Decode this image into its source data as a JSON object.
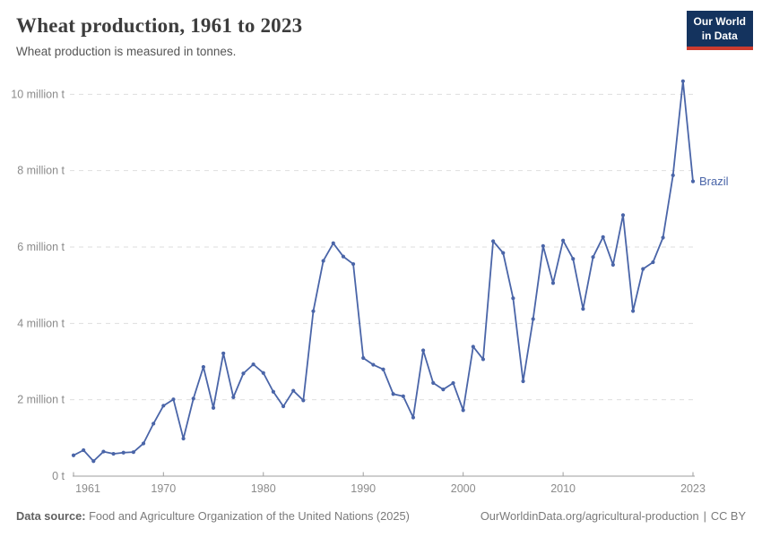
{
  "header": {
    "title": "Wheat production, 1961 to 2023",
    "subtitle": "Wheat production is measured in tonnes.",
    "logo": {
      "line1": "Our World",
      "line2": "in Data"
    }
  },
  "colors": {
    "logo_background": "#14335e",
    "logo_underline": "#cc3b2f",
    "series_blue": "#4a65a8",
    "gridline": "#dedede",
    "axis_line": "#9e9e9e",
    "tick_label": "#8b8b8b"
  },
  "chart_data": {
    "type": "line",
    "title": "Wheat production, 1961 to 2023",
    "unit": "tonnes",
    "entity": "Brazil",
    "grid": "dashed-horizontal",
    "legend_position": "line-end-label",
    "ylim": [
      0,
      10500000
    ],
    "x": [
      1961,
      1962,
      1963,
      1964,
      1965,
      1966,
      1967,
      1968,
      1969,
      1970,
      1971,
      1972,
      1973,
      1974,
      1975,
      1976,
      1977,
      1978,
      1979,
      1980,
      1981,
      1982,
      1983,
      1984,
      1985,
      1986,
      1987,
      1988,
      1989,
      1990,
      1991,
      1992,
      1993,
      1994,
      1995,
      1996,
      1997,
      1998,
      1999,
      2000,
      2001,
      2002,
      2003,
      2004,
      2005,
      2006,
      2007,
      2008,
      2009,
      2010,
      2011,
      2012,
      2013,
      2014,
      2015,
      2016,
      2017,
      2018,
      2019,
      2020,
      2021,
      2022,
      2023
    ],
    "series": [
      {
        "name": "Brazil",
        "color": "#4a65a8",
        "values": [
          545000,
          680000,
          392000,
          643000,
          585000,
          615000,
          629000,
          856000,
          1374000,
          1844000,
          2011000,
          983000,
          2031000,
          2859000,
          1788000,
          3216000,
          2066000,
          2690000,
          2927000,
          2702000,
          2209000,
          1827000,
          2237000,
          1983000,
          4320000,
          5638000,
          6099000,
          5751000,
          5554000,
          3093000,
          2917000,
          2796000,
          2150000,
          2091000,
          1534000,
          3293000,
          2441000,
          2270000,
          2438000,
          1725000,
          3390000,
          3060000,
          6153000,
          5845000,
          4659000,
          2485000,
          4114000,
          6027000,
          5056000,
          6171000,
          5690000,
          4380000,
          5738000,
          6262000,
          5535000,
          6835000,
          4324000,
          5427000,
          5602000,
          6246000,
          7879000,
          10344000,
          7720000
        ]
      }
    ],
    "y_ticks": [
      {
        "value": 0,
        "label": "0 t"
      },
      {
        "value": 2000000,
        "label": "2 million t"
      },
      {
        "value": 4000000,
        "label": "4 million t"
      },
      {
        "value": 6000000,
        "label": "6 million t"
      },
      {
        "value": 8000000,
        "label": "8 million t"
      },
      {
        "value": 10000000,
        "label": "10 million t"
      }
    ],
    "x_ticks": [
      1961,
      1970,
      1980,
      1990,
      2000,
      2010,
      2023
    ]
  },
  "footer": {
    "source_label": "Data source:",
    "source_text": "Food and Agriculture Organization of the United Nations (2025)",
    "url": "OurWorldinData.org/agricultural-production",
    "separator": "|",
    "license": "CC BY"
  }
}
